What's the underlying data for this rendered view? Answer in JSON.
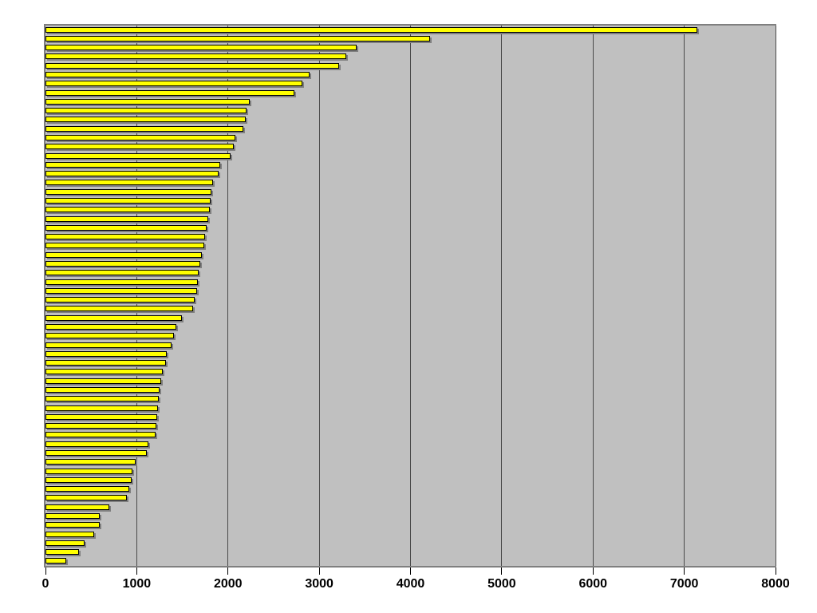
{
  "chart": {
    "background_color": "#ffffff",
    "plot_background_color": "#c0c0c0",
    "bar_fill_color": "#ffff00",
    "bar_border_color": "#000000",
    "bar_shadow_color": "#7f7f7f",
    "gridline_color": "#4a4a4a",
    "tick_label_color": "#000000"
  },
  "chart_data": {
    "type": "bar",
    "orientation": "horizontal",
    "title": "",
    "xlabel": "",
    "ylabel": "",
    "legend": false,
    "grid": true,
    "xlim": [
      0,
      8000
    ],
    "x_ticks": [
      0,
      1000,
      2000,
      3000,
      4000,
      5000,
      6000,
      7000,
      8000
    ],
    "x_tick_labels": [
      "0",
      "1000",
      "2000",
      "3000",
      "4000",
      "5000",
      "6000",
      "7000",
      "8000"
    ],
    "categories": [],
    "values": [
      7130,
      4200,
      3390,
      3280,
      3200,
      2880,
      2800,
      2710,
      2220,
      2190,
      2180,
      2150,
      2060,
      2050,
      2010,
      1900,
      1880,
      1820,
      1800,
      1790,
      1780,
      1770,
      1745,
      1730,
      1720,
      1695,
      1680,
      1665,
      1650,
      1640,
      1620,
      1600,
      1480,
      1420,
      1390,
      1360,
      1315,
      1300,
      1270,
      1250,
      1235,
      1220,
      1215,
      1210,
      1200,
      1190,
      1110,
      1090,
      970,
      935,
      930,
      900,
      870,
      680,
      580,
      575,
      512,
      412,
      354,
      213
    ]
  }
}
